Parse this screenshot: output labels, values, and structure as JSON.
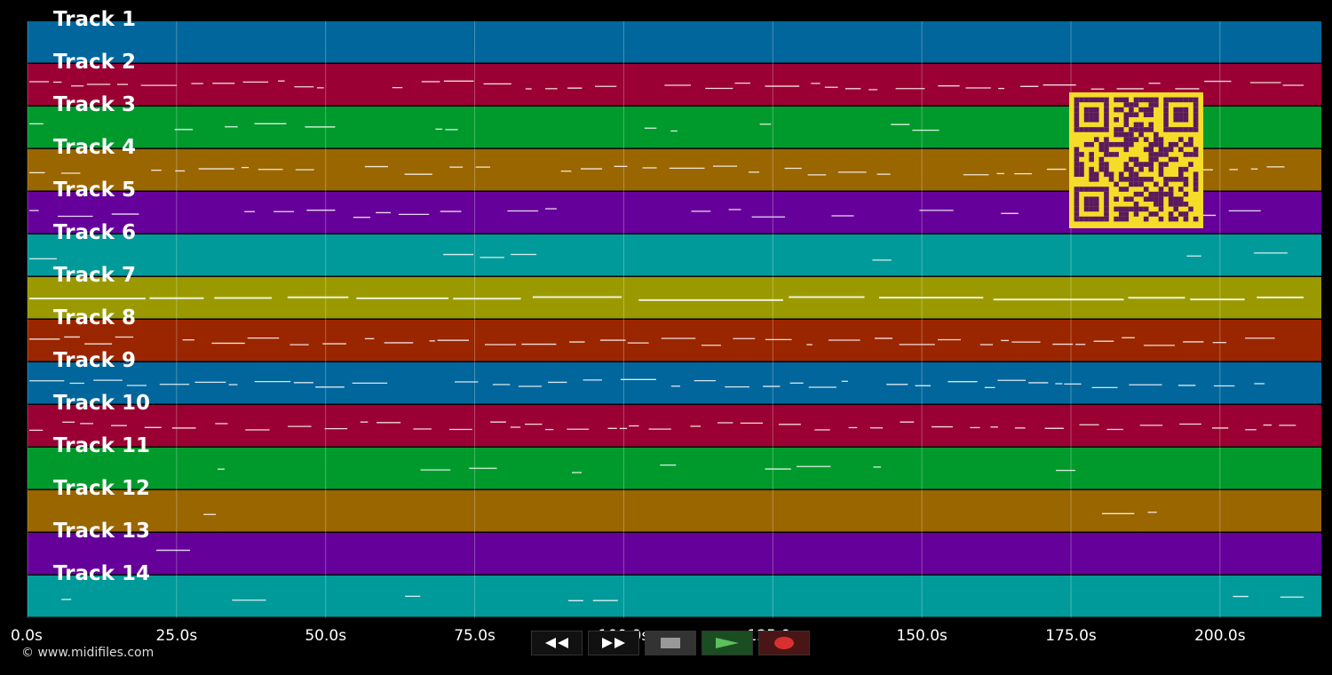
{
  "tracks": [
    {
      "label": "Track 1",
      "color": "#00669c"
    },
    {
      "label": "Track 2",
      "color": "#9a0033"
    },
    {
      "label": "Track 3",
      "color": "#009a2c"
    },
    {
      "label": "Track 4",
      "color": "#9a6600"
    },
    {
      "label": "Track 5",
      "color": "#66009a"
    },
    {
      "label": "Track 6",
      "color": "#009a9a"
    },
    {
      "label": "Track 7",
      "color": "#9a9a00"
    },
    {
      "label": "Track 8",
      "color": "#9a2600"
    },
    {
      "label": "Track 9",
      "color": "#00669c"
    },
    {
      "label": "Track 10",
      "color": "#9a0033"
    },
    {
      "label": "Track 11",
      "color": "#009a2c"
    },
    {
      "label": "Track 12",
      "color": "#9a6600"
    },
    {
      "label": "Track 13",
      "color": "#66009a"
    },
    {
      "label": "Track 14",
      "color": "#009a9a"
    }
  ],
  "timeline": {
    "ticks": [
      "0.0s",
      "25.0s",
      "50.0s",
      "75.0s",
      "100.0s",
      "125.0s",
      "150.0s",
      "175.0s",
      "200.0s"
    ],
    "tick_values": [
      0,
      25,
      50,
      75,
      100,
      125,
      150,
      175,
      200
    ],
    "max_seconds": 217
  },
  "copyright": "© www.midifiles.com",
  "transport": {
    "rewind_icon": "rewind-icon",
    "fast_forward_icon": "fast-forward-icon",
    "stop_icon": "stop-icon",
    "play_icon": "play-icon",
    "record_icon": "record-icon"
  },
  "qr_colors": {
    "fg": "#5a1a5e",
    "bg": "#f5dc28"
  }
}
